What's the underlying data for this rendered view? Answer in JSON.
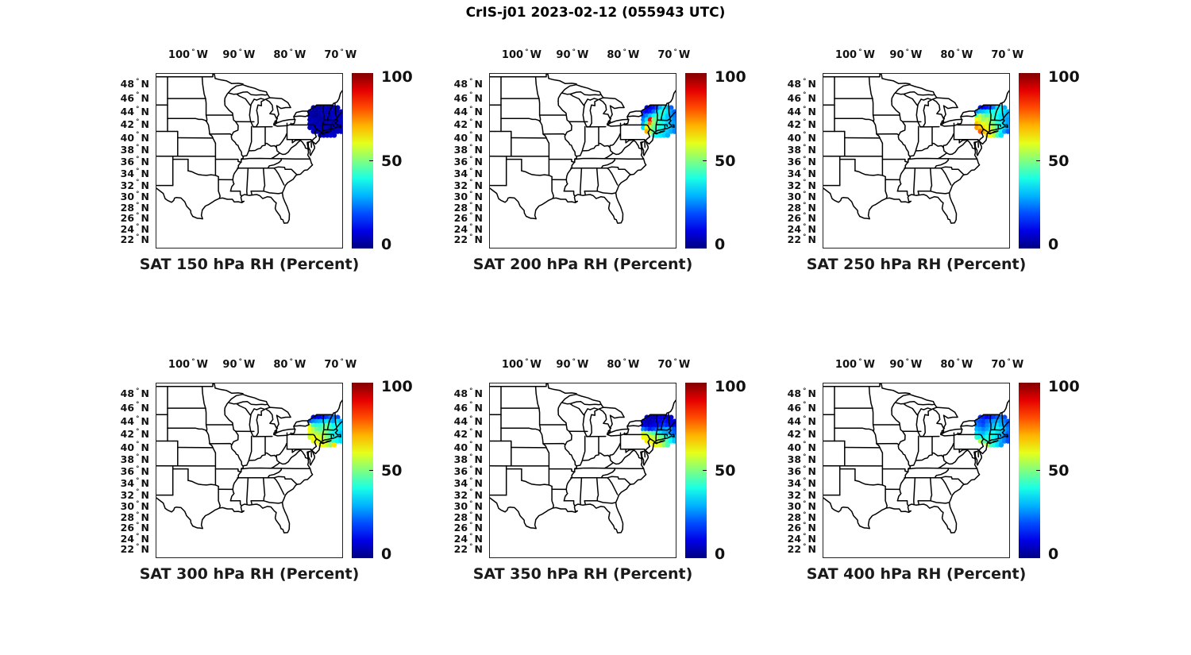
{
  "figure": {
    "title": "CrIS-j01 2023-02-12 (055943 UTC)",
    "background": "#ffffff",
    "text_color": "#111111",
    "map_line_color": "#000000"
  },
  "chart_data": {
    "type": "scatter",
    "subtype": "geographic-scatter-map-grid",
    "grid": {
      "rows": 2,
      "cols": 3
    },
    "projection": "mercator",
    "extent": {
      "lon_min": -106.4,
      "lon_max": -69.5,
      "lat_min": 20.3,
      "lat_max": 49.5
    },
    "lon_ticks": {
      "values": [
        -100,
        -90,
        -80,
        -70
      ],
      "labels": [
        "100° W",
        "90° W",
        "80° W",
        "70° W"
      ]
    },
    "lat_ticks": {
      "values": [
        48,
        46,
        44,
        42,
        40,
        38,
        36,
        34,
        32,
        30,
        28,
        26,
        24,
        22
      ],
      "labels": [
        "48° N",
        "46° N",
        "44° N",
        "42° N",
        "40° N",
        "38° N",
        "36° N",
        "34° N",
        "32° N",
        "30° N",
        "28° N",
        "26° N",
        "24° N",
        "22° N"
      ]
    },
    "colorbar": {
      "min": 0,
      "max": 100,
      "tick_values": [
        100,
        50,
        0
      ],
      "tick_labels": [
        "100",
        "50",
        "0"
      ],
      "colormap": "jet"
    },
    "units": "Percent",
    "footprint": {
      "lons": [
        -76.0,
        -75.32,
        -74.64,
        -73.96,
        -73.28,
        -72.6,
        -71.92,
        -71.24,
        -70.56,
        -69.88
      ],
      "lats": [
        44.6,
        44.0,
        43.4,
        42.8,
        42.2,
        41.6,
        41.0,
        40.4
      ]
    },
    "panels": [
      {
        "title": "SAT 150 hPa RH (Percent)",
        "level_hPa": 150,
        "values": [
          [
            null,
            5,
            4,
            3,
            5,
            6,
            4,
            7,
            5,
            null
          ],
          [
            6,
            4,
            3,
            5,
            7,
            5,
            8,
            6,
            4,
            5
          ],
          [
            5,
            3,
            2,
            4,
            6,
            8,
            5,
            7,
            9,
            6
          ],
          [
            4,
            6,
            5,
            3,
            5,
            7,
            6,
            8,
            5,
            7
          ],
          [
            7,
            5,
            4,
            6,
            3,
            5,
            7,
            4,
            6,
            8
          ],
          [
            5,
            8,
            6,
            4,
            6,
            5,
            3,
            6,
            7,
            5
          ],
          [
            null,
            6,
            5,
            7,
            4,
            6,
            8,
            5,
            6,
            7
          ],
          [
            null,
            null,
            null,
            7,
            5,
            6,
            8,
            7,
            null,
            null
          ]
        ]
      },
      {
        "title": "SAT 200 hPa RH (Percent)",
        "level_hPa": 200,
        "values": [
          [
            null,
            12,
            10,
            14,
            20,
            30,
            36,
            32,
            22,
            null
          ],
          [
            15,
            12,
            15,
            22,
            32,
            40,
            42,
            36,
            28,
            22
          ],
          [
            20,
            25,
            32,
            38,
            44,
            42,
            38,
            32,
            28,
            24
          ],
          [
            25,
            35,
            88,
            50,
            45,
            40,
            36,
            32,
            30,
            26
          ],
          [
            30,
            45,
            75,
            52,
            46,
            42,
            38,
            34,
            30,
            28
          ],
          [
            35,
            62,
            55,
            48,
            44,
            40,
            38,
            34,
            32,
            28
          ],
          [
            null,
            70,
            58,
            45,
            40,
            38,
            36,
            33,
            30,
            26
          ],
          [
            null,
            null,
            null,
            40,
            38,
            36,
            34,
            30,
            null,
            null
          ]
        ]
      },
      {
        "title": "SAT 250 hPa RH (Percent)",
        "level_hPa": 250,
        "values": [
          [
            null,
            15,
            12,
            14,
            18,
            25,
            35,
            38,
            30,
            null
          ],
          [
            25,
            30,
            32,
            35,
            38,
            40,
            42,
            38,
            35,
            30
          ],
          [
            45,
            55,
            50,
            45,
            48,
            42,
            38,
            35,
            32,
            30
          ],
          [
            62,
            58,
            52,
            55,
            50,
            45,
            40,
            35,
            30,
            28
          ],
          [
            68,
            65,
            60,
            58,
            52,
            48,
            42,
            38,
            32,
            28
          ],
          [
            72,
            68,
            65,
            60,
            58,
            52,
            45,
            40,
            35,
            30
          ],
          [
            null,
            78,
            70,
            65,
            62,
            58,
            48,
            38,
            28,
            22
          ],
          [
            null,
            null,
            null,
            66,
            62,
            55,
            45,
            35,
            null,
            null
          ]
        ]
      },
      {
        "title": "SAT 300 hPa RH (Percent)",
        "level_hPa": 300,
        "values": [
          [
            null,
            12,
            10,
            12,
            15,
            18,
            22,
            25,
            20,
            null
          ],
          [
            20,
            25,
            28,
            30,
            32,
            35,
            30,
            28,
            35,
            30
          ],
          [
            58,
            45,
            40,
            42,
            45,
            48,
            42,
            38,
            40,
            35
          ],
          [
            62,
            55,
            48,
            45,
            48,
            50,
            45,
            40,
            38,
            35
          ],
          [
            60,
            58,
            55,
            52,
            55,
            48,
            42,
            38,
            35,
            32
          ],
          [
            58,
            62,
            60,
            58,
            55,
            50,
            45,
            40,
            36,
            34
          ],
          [
            null,
            60,
            62,
            58,
            60,
            55,
            48,
            42,
            38,
            35
          ],
          [
            null,
            null,
            null,
            62,
            60,
            58,
            52,
            65,
            null,
            null
          ]
        ]
      },
      {
        "title": "SAT 350 hPa RH (Percent)",
        "level_hPa": 350,
        "values": [
          [
            null,
            8,
            6,
            5,
            8,
            10,
            12,
            10,
            8,
            null
          ],
          [
            8,
            6,
            5,
            7,
            10,
            12,
            15,
            12,
            10,
            8
          ],
          [
            10,
            8,
            7,
            10,
            12,
            15,
            18,
            15,
            12,
            10
          ],
          [
            25,
            20,
            15,
            18,
            22,
            25,
            28,
            30,
            25,
            20
          ],
          [
            58,
            55,
            50,
            45,
            40,
            35,
            30,
            28,
            25,
            22
          ],
          [
            62,
            60,
            58,
            55,
            52,
            48,
            45,
            40,
            35,
            30
          ],
          [
            null,
            64,
            62,
            60,
            58,
            55,
            50,
            45,
            38,
            32
          ],
          [
            null,
            null,
            null,
            62,
            60,
            58,
            52,
            45,
            null,
            null
          ]
        ]
      },
      {
        "title": "SAT 400 hPa RH (Percent)",
        "level_hPa": 400,
        "values": [
          [
            null,
            18,
            15,
            12,
            15,
            18,
            22,
            25,
            20,
            null
          ],
          [
            22,
            20,
            18,
            22,
            25,
            28,
            30,
            28,
            25,
            20
          ],
          [
            25,
            22,
            20,
            25,
            28,
            32,
            35,
            30,
            28,
            22
          ],
          [
            30,
            28,
            25,
            28,
            32,
            35,
            38,
            35,
            30,
            25
          ],
          [
            35,
            32,
            30,
            35,
            38,
            40,
            35,
            32,
            28,
            22
          ],
          [
            42,
            38,
            35,
            40,
            42,
            38,
            35,
            30,
            25,
            20
          ],
          [
            null,
            55,
            48,
            42,
            40,
            38,
            35,
            30,
            25,
            20
          ],
          [
            null,
            null,
            null,
            58,
            45,
            40,
            35,
            28,
            null,
            null
          ]
        ]
      }
    ]
  }
}
